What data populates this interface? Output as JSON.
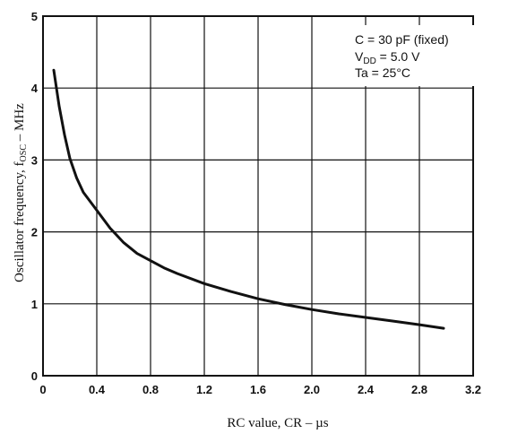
{
  "chart_data": {
    "type": "line",
    "title": "",
    "xlabel": "RC value, CR – µs",
    "ylabel": {
      "main": "Oscillator frequency, f",
      "sub": "OSC",
      "tail": " – MHz"
    },
    "xlim": [
      0,
      3.2
    ],
    "ylim": [
      0,
      5
    ],
    "x_ticks": [
      "0",
      "0.4",
      "0.8",
      "1.2",
      "1.6",
      "2.0",
      "2.4",
      "2.8",
      "3.2"
    ],
    "y_ticks": [
      "0",
      "1",
      "2",
      "3",
      "4",
      "5"
    ],
    "grid": true,
    "annotation": {
      "line1": "C = 30 pF (fixed)",
      "line2_main": "V",
      "line2_sub": "DD",
      "line2_tail": " = 5.0 V",
      "line3": "Ta = 25°C"
    },
    "series": [
      {
        "x": [
          0.08,
          0.12,
          0.16,
          0.2,
          0.25,
          0.3,
          0.4,
          0.5,
          0.6,
          0.7,
          0.8,
          0.9,
          1.0,
          1.2,
          1.4,
          1.6,
          1.8,
          2.0,
          2.2,
          2.4,
          2.6,
          2.8,
          2.98
        ],
        "y": [
          4.25,
          3.75,
          3.35,
          3.02,
          2.75,
          2.55,
          2.3,
          2.05,
          1.85,
          1.7,
          1.6,
          1.5,
          1.42,
          1.28,
          1.17,
          1.07,
          0.99,
          0.92,
          0.86,
          0.81,
          0.76,
          0.71,
          0.66
        ]
      }
    ]
  }
}
